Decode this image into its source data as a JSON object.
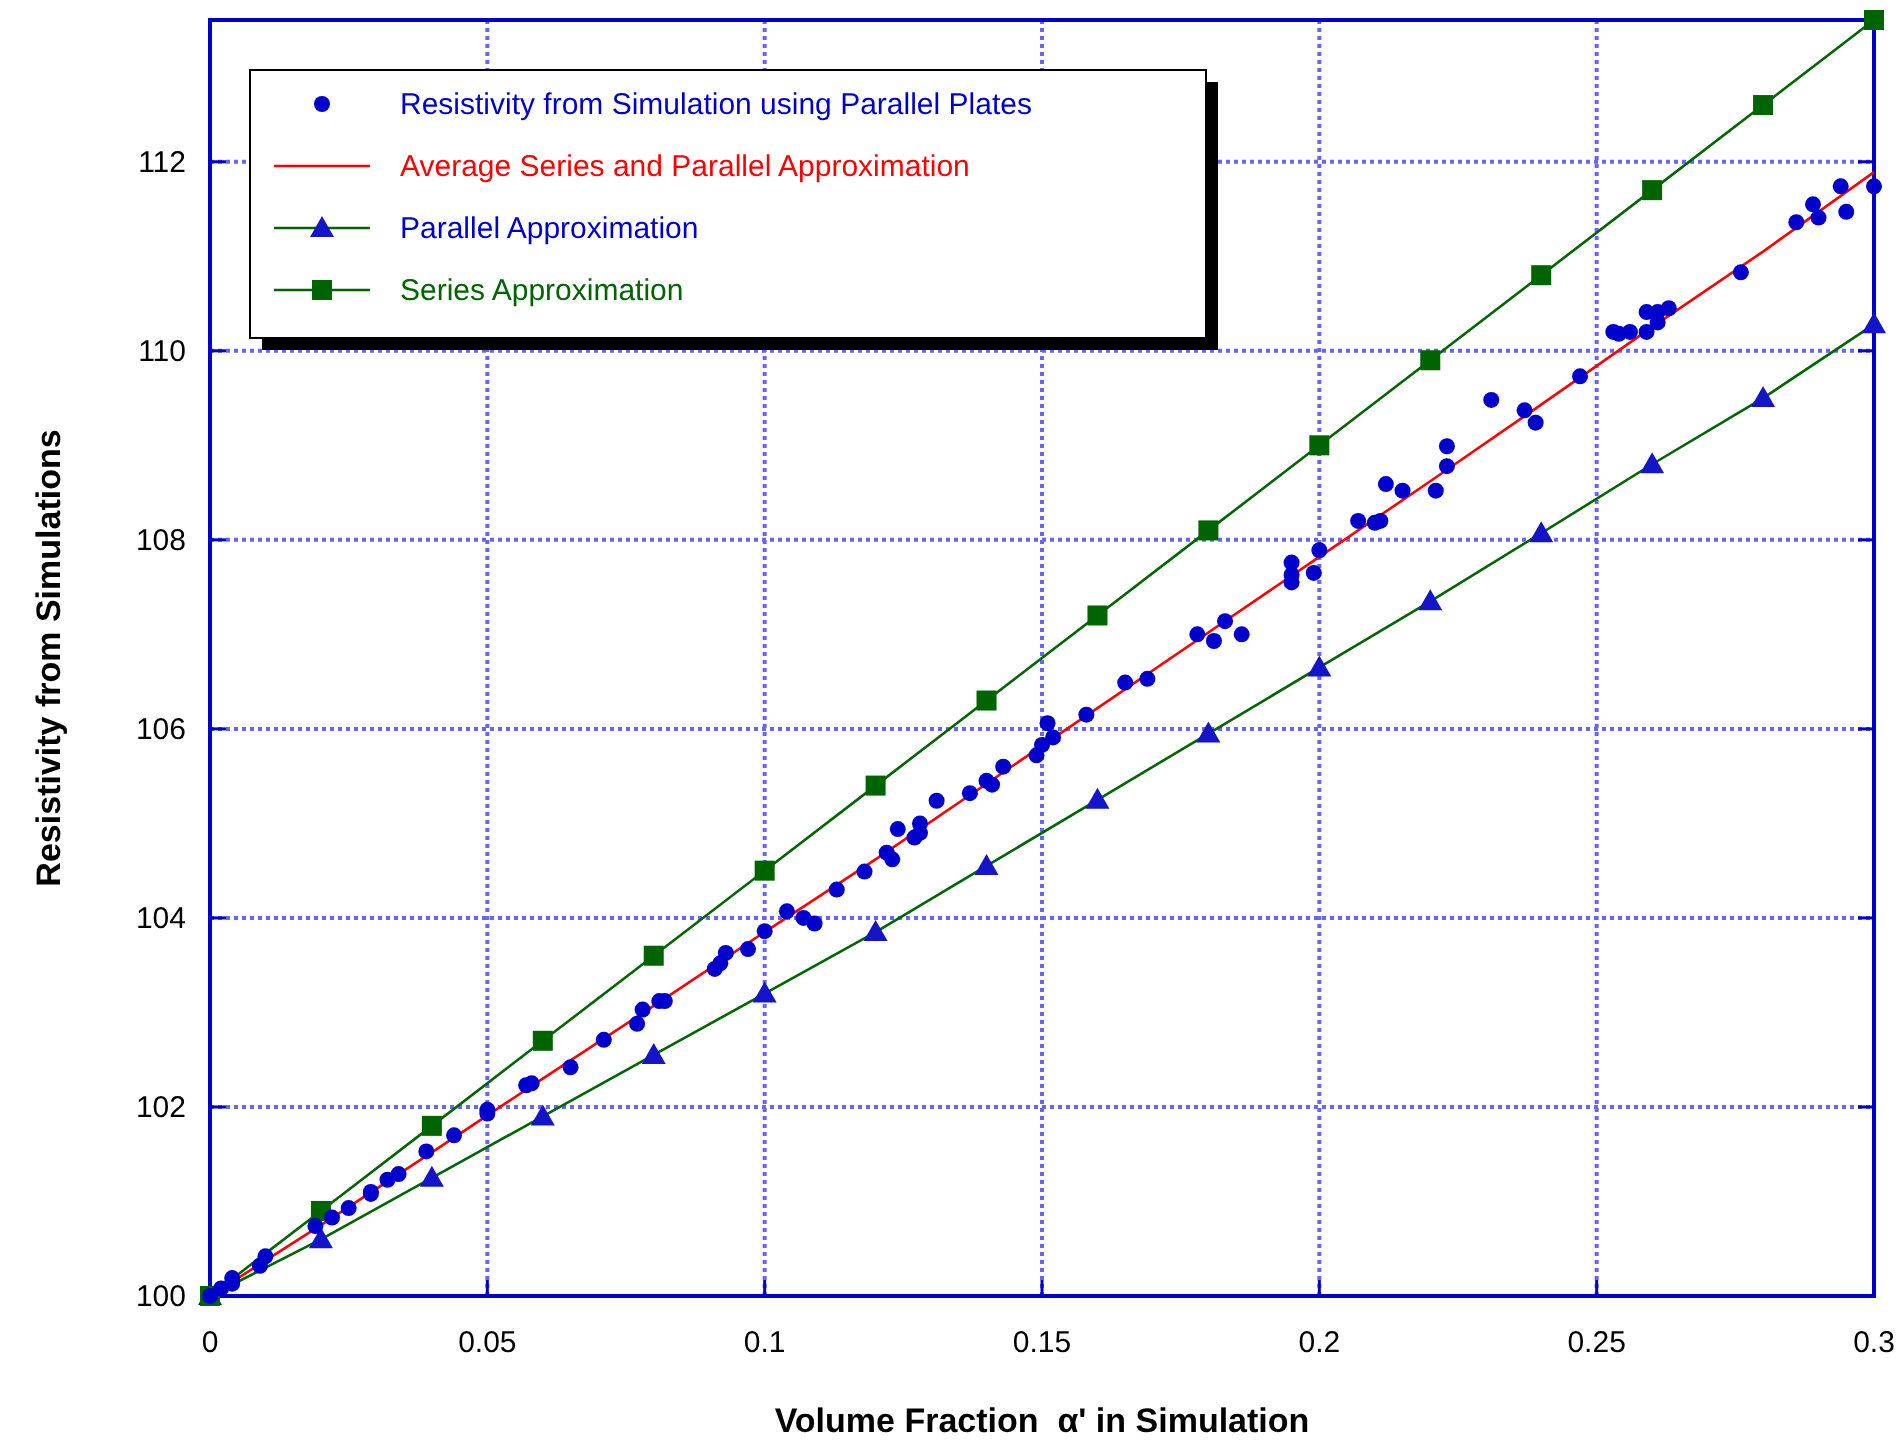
{
  "chart_data": {
    "type": "scatter",
    "xlabel": "Volume Fraction  α' in Simulation",
    "ylabel": "Resistivity from Simulations",
    "xlim": [
      0,
      0.3
    ],
    "ylim": [
      100,
      113.5
    ],
    "xticks": [
      0,
      0.05,
      0.1,
      0.15,
      0.2,
      0.25,
      0.3
    ],
    "yticks": [
      100,
      102,
      104,
      106,
      108,
      110,
      112
    ],
    "grid": true,
    "legend": "top left",
    "series": [
      {
        "name": "Resistivity from Simulation using Parallel Plates",
        "type": "scatter",
        "marker": "circle",
        "color": "#0000cc",
        "x": [
          0,
          0.002,
          0.004,
          0.004,
          0.009,
          0.01,
          0.019,
          0.022,
          0.025,
          0.029,
          0.029,
          0.032,
          0.034,
          0.039,
          0.044,
          0.05,
          0.05,
          0.057,
          0.058,
          0.065,
          0.071,
          0.077,
          0.078,
          0.081,
          0.082,
          0.091,
          0.092,
          0.093,
          0.097,
          0.1,
          0.104,
          0.107,
          0.109,
          0.113,
          0.118,
          0.122,
          0.123,
          0.124,
          0.127,
          0.128,
          0.128,
          0.131,
          0.137,
          0.14,
          0.141,
          0.143,
          0.149,
          0.15,
          0.151,
          0.152,
          0.158,
          0.165,
          0.169,
          0.178,
          0.181,
          0.183,
          0.186,
          0.195,
          0.195,
          0.195,
          0.2,
          0.199,
          0.207,
          0.21,
          0.211,
          0.212,
          0.215,
          0.221,
          0.223,
          0.223,
          0.231,
          0.237,
          0.239,
          0.247,
          0.253,
          0.254,
          0.256,
          0.259,
          0.259,
          0.261,
          0.261,
          0.263,
          0.276,
          0.286,
          0.289,
          0.29,
          0.294,
          0.295,
          0.3
        ],
        "values": [
          100,
          100.08,
          100.19,
          100.13,
          100.32,
          100.42,
          100.74,
          100.83,
          100.93,
          101.08,
          101.1,
          101.23,
          101.29,
          101.53,
          101.7,
          101.97,
          101.93,
          102.23,
          102.25,
          102.42,
          102.71,
          102.88,
          103.03,
          103.12,
          103.12,
          103.46,
          103.52,
          103.63,
          103.67,
          103.86,
          104.07,
          104.0,
          103.94,
          104.3,
          104.49,
          104.69,
          104.62,
          104.94,
          104.85,
          104.9,
          105.0,
          105.24,
          105.32,
          105.45,
          105.41,
          105.6,
          105.72,
          105.83,
          106.06,
          105.91,
          106.15,
          106.49,
          106.53,
          107.0,
          106.93,
          107.14,
          107.0,
          107.76,
          107.63,
          107.55,
          107.89,
          107.65,
          108.2,
          108.18,
          108.2,
          108.59,
          108.52,
          108.52,
          108.99,
          108.78,
          109.48,
          109.37,
          109.24,
          109.73,
          110.2,
          110.18,
          110.2,
          110.2,
          110.41,
          110.3,
          110.41,
          110.45,
          110.83,
          111.36,
          111.55,
          111.41,
          111.74,
          111.47,
          111.74
        ]
      },
      {
        "name": "Average Series and Parallel Approximation",
        "type": "line",
        "marker": "none",
        "color": "#ff0000",
        "x": [
          0,
          0.02,
          0.04,
          0.06,
          0.08,
          0.1,
          0.12,
          0.14,
          0.16,
          0.18,
          0.2,
          0.22,
          0.24,
          0.26,
          0.28,
          0.3
        ],
        "values": [
          100,
          100.75,
          101.52,
          102.3,
          103.07,
          103.85,
          104.62,
          105.42,
          106.22,
          107.02,
          107.82,
          108.62,
          109.43,
          110.25,
          111.05,
          111.89
        ]
      },
      {
        "name": "Parallel Approximation",
        "type": "line",
        "marker": "triangle",
        "color": "#1414c8",
        "x": [
          0,
          0.02,
          0.04,
          0.06,
          0.08,
          0.1,
          0.12,
          0.14,
          0.16,
          0.18,
          0.2,
          0.22,
          0.24,
          0.26,
          0.28,
          0.3
        ],
        "values": [
          100,
          100.6,
          101.25,
          101.9,
          102.55,
          103.2,
          103.85,
          104.55,
          105.25,
          105.95,
          106.65,
          107.35,
          108.07,
          108.8,
          109.5,
          110.28
        ]
      },
      {
        "name": "Series Approximation",
        "type": "line",
        "marker": "square",
        "color": "#006400",
        "x": [
          0,
          0.02,
          0.04,
          0.06,
          0.08,
          0.1,
          0.12,
          0.14,
          0.16,
          0.18,
          0.2,
          0.22,
          0.24,
          0.26,
          0.28,
          0.3
        ],
        "values": [
          100,
          100.9,
          101.8,
          102.7,
          103.6,
          104.5,
          105.4,
          106.3,
          107.2,
          108.1,
          109.0,
          109.9,
          110.8,
          111.7,
          112.6,
          113.5
        ]
      }
    ]
  }
}
